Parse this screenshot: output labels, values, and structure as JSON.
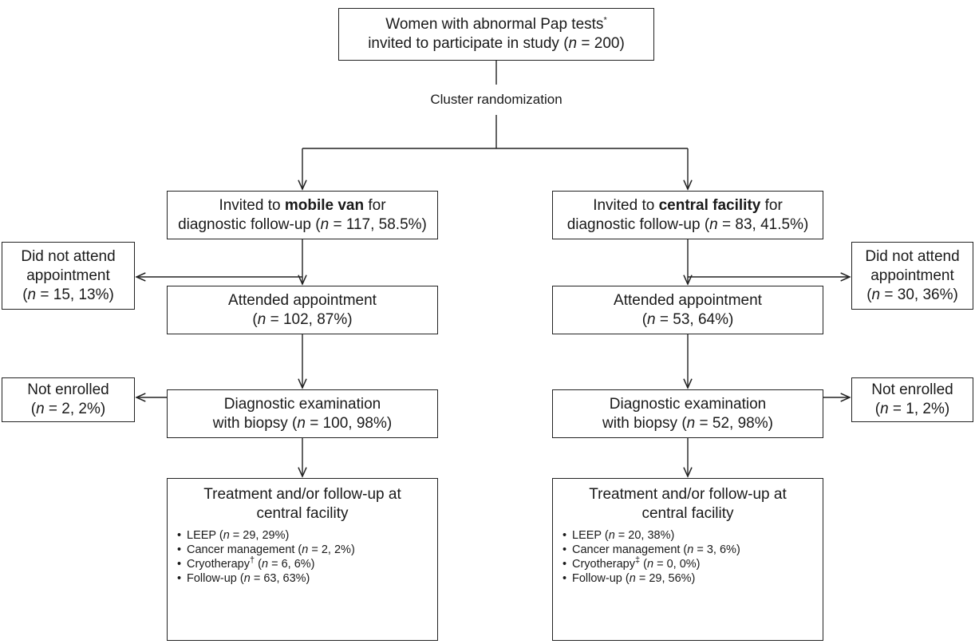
{
  "top": {
    "line1": "Women with abnormal Pap tests",
    "line1_mark": "*",
    "line2_pre": "invited to participate in study (",
    "n": "n",
    "line2_val": " = 200)"
  },
  "randomization": "Cluster randomization",
  "van": {
    "invite_pre": "Invited to ",
    "invite_bold": "mobile van",
    "invite_post": " for",
    "followup_pre": "diagnostic follow-up (",
    "followup_val": " = 117, 58.5%)",
    "dna_line1": "Did not attend",
    "dna_line2": "appointment",
    "dna_val": " = 15, 13%)",
    "attended_title": "Attended appointment",
    "attended_val": " = 102, 87%)",
    "not_enrolled": "Not enrolled",
    "not_enrolled_val": " = 2, 2%)",
    "exam_line1": "Diagnostic examination",
    "exam_pre": "with biopsy (",
    "exam_val": " = 100, 98%)",
    "treat_line1": "Treatment and/or follow-up at",
    "treat_line2": "central facility",
    "items": [
      {
        "label": "LEEP (",
        "mark": "",
        "val": " = 29, 29%)"
      },
      {
        "label": "Cancer management (",
        "mark": "",
        "val": " = 2, 2%)"
      },
      {
        "label": "Cryotherapy",
        "mark": "†",
        "val": " = 6, 6%)"
      },
      {
        "label": "Follow-up (",
        "mark": "",
        "val": " = 63, 63%)"
      }
    ]
  },
  "central": {
    "invite_pre": "Invited to ",
    "invite_bold": "central facility",
    "invite_post": " for",
    "followup_pre": "diagnostic follow-up (",
    "followup_val": " = 83, 41.5%)",
    "dna_line1": "Did not attend",
    "dna_line2": "appointment",
    "dna_val": " = 30, 36%)",
    "attended_title": "Attended appointment",
    "attended_val": " = 53, 64%)",
    "not_enrolled": "Not enrolled",
    "not_enrolled_val": " = 1, 2%)",
    "exam_line1": "Diagnostic examination",
    "exam_pre": "with biopsy (",
    "exam_val": " = 52, 98%)",
    "treat_line1": "Treatment and/or follow-up at",
    "treat_line2": "central facility",
    "items": [
      {
        "label": "LEEP (",
        "mark": "",
        "val": " = 20, 38%)"
      },
      {
        "label": "Cancer management (",
        "mark": "",
        "val": " = 3, 6%)"
      },
      {
        "label": "Cryotherapy",
        "mark": "‡",
        "val": " = 0, 0%)"
      },
      {
        "label": "Follow-up (",
        "mark": "",
        "val": " = 29, 56%)"
      }
    ]
  },
  "paren_open": "(",
  "n_letter": "n"
}
